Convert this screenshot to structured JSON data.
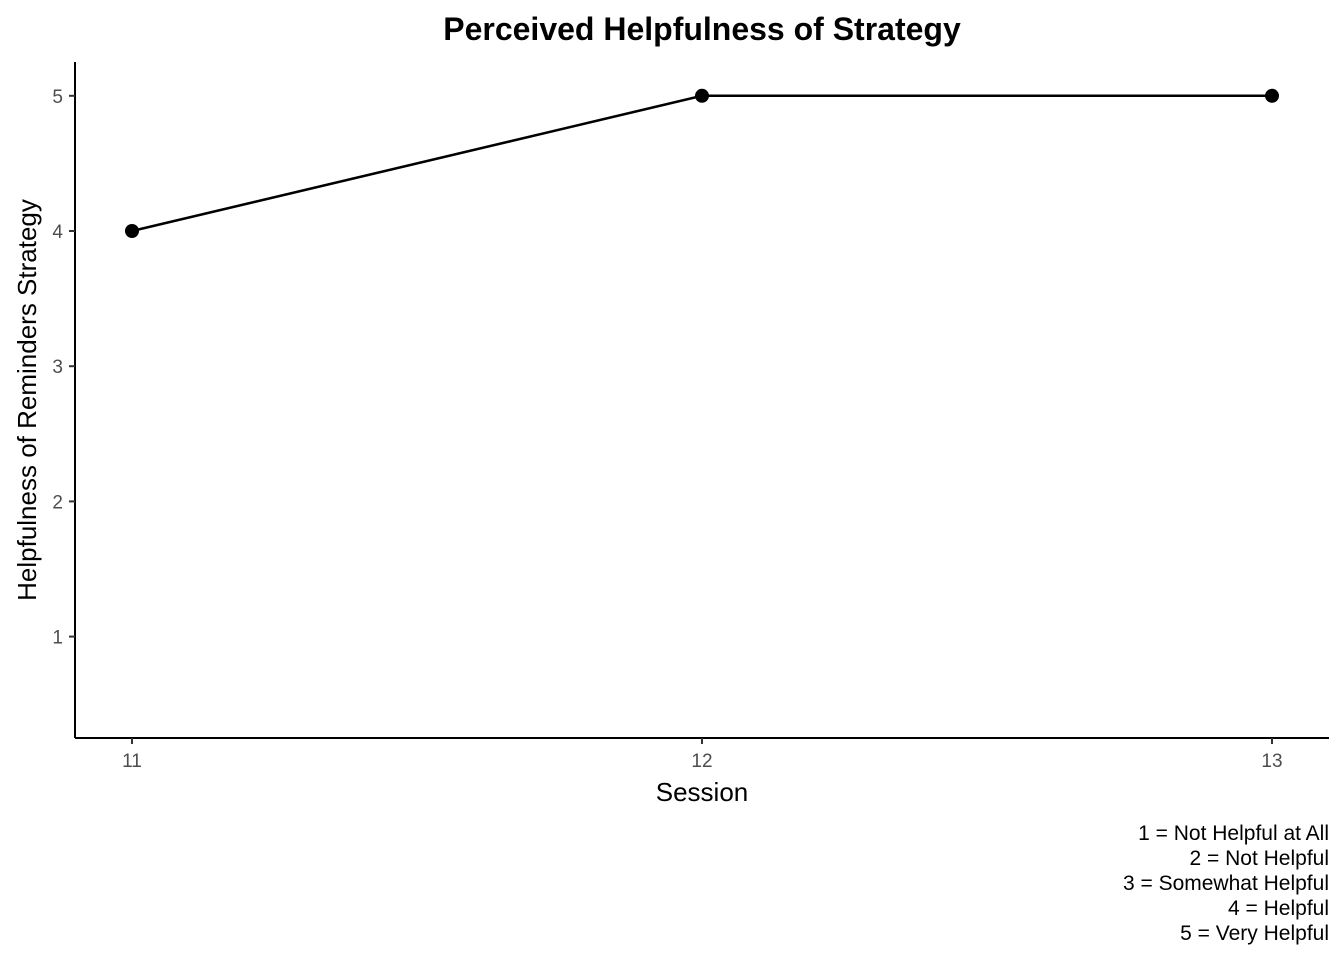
{
  "chart_data": {
    "type": "line",
    "title": "Perceived Helpfulness of Strategy",
    "xlabel": "Session",
    "ylabel": "Helpfulness of Reminders Strategy",
    "x": [
      11,
      12,
      13
    ],
    "y": [
      4,
      5,
      5
    ],
    "x_ticks": [
      "11",
      "12",
      "13"
    ],
    "y_ticks": [
      "1",
      "2",
      "3",
      "4",
      "5"
    ],
    "xlim": [
      10.9,
      13.1
    ],
    "ylim": [
      0.25,
      5.25
    ],
    "grid": false,
    "line_color": "#000000",
    "point_color": "#000000",
    "caption": [
      "1 = Not Helpful at All",
      "2 = Not Helpful",
      "3 = Somewhat Helpful",
      "4 = Helpful",
      "5 = Very Helpful"
    ]
  }
}
